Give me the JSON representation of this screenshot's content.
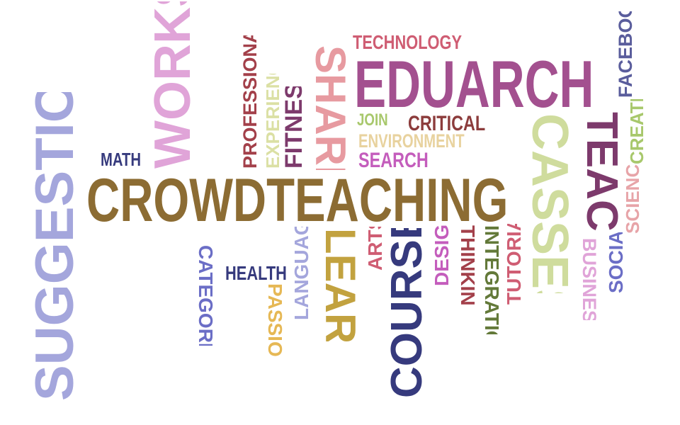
{
  "words": [
    {
      "id": "crowdteaching",
      "text": "CROWDTEACHING",
      "color": "#8c6c33",
      "orientation": "horizontal"
    },
    {
      "id": "eduarch",
      "text": "EDUARCH",
      "color": "#a3508f",
      "orientation": "horizontal"
    },
    {
      "id": "suggestions",
      "text": "SUGGESTIONS",
      "color": "#a4a6dc",
      "orientation": "vertical-up"
    },
    {
      "id": "works",
      "text": "WORKS",
      "color": "#e0a4d8",
      "orientation": "vertical-up"
    },
    {
      "id": "courses",
      "text": "COURSES",
      "color": "#363a7d",
      "orientation": "vertical-up"
    },
    {
      "id": "casses",
      "text": "CASSES",
      "color": "#cfdc9d",
      "orientation": "vertical-down"
    },
    {
      "id": "learn",
      "text": "LEARN",
      "color": "#c2a23f",
      "orientation": "vertical-down"
    },
    {
      "id": "share",
      "text": "SHARE",
      "color": "#e79aa0",
      "orientation": "vertical-down"
    },
    {
      "id": "teach",
      "text": "TEACH",
      "color": "#7d3a6c",
      "orientation": "vertical-down"
    },
    {
      "id": "technology",
      "text": "TECHNOLOGY",
      "color": "#cf5d73",
      "orientation": "horizontal"
    },
    {
      "id": "critical",
      "text": "CRITICAL",
      "color": "#8c3c3c",
      "orientation": "horizontal"
    },
    {
      "id": "join",
      "text": "JOIN",
      "color": "#a8c86c",
      "orientation": "horizontal"
    },
    {
      "id": "environment",
      "text": "ENVIRONMENT",
      "color": "#e8d29e",
      "orientation": "horizontal"
    },
    {
      "id": "search",
      "text": "SEARCH",
      "color": "#c45dbc",
      "orientation": "horizontal"
    },
    {
      "id": "math",
      "text": "MATH",
      "color": "#363a7d",
      "orientation": "horizontal"
    },
    {
      "id": "health",
      "text": "HEALTH",
      "color": "#363a7d",
      "orientation": "horizontal"
    },
    {
      "id": "professionals",
      "text": "PROFESSIONALS",
      "color": "#a3404a",
      "orientation": "vertical-up"
    },
    {
      "id": "experience",
      "text": "EXPERIENCE",
      "color": "#dbe0a4",
      "orientation": "vertical-up"
    },
    {
      "id": "fitness",
      "text": "FITNESS",
      "color": "#7d3a6c",
      "orientation": "vertical-up"
    },
    {
      "id": "facebook",
      "text": "FACEBOOK",
      "color": "#5a5d9c",
      "orientation": "vertical-up"
    },
    {
      "id": "create",
      "text": "CREATE",
      "color": "#a8c86c",
      "orientation": "vertical-up"
    },
    {
      "id": "science",
      "text": "SCIENCE",
      "color": "#e7a4a8",
      "orientation": "vertical-up"
    },
    {
      "id": "categories",
      "text": "CATEGORIES",
      "color": "#6b6ec6",
      "orientation": "vertical-down"
    },
    {
      "id": "languages",
      "text": "LANGUAGES",
      "color": "#a4a6dc",
      "orientation": "vertical-up"
    },
    {
      "id": "passion",
      "text": "PASSION",
      "color": "#e6b855",
      "orientation": "vertical-down"
    },
    {
      "id": "arts",
      "text": "ARTS",
      "color": "#cf5d73",
      "orientation": "vertical-up"
    },
    {
      "id": "design",
      "text": "DESIGN",
      "color": "#c45dbc",
      "orientation": "vertical-up"
    },
    {
      "id": "thinking",
      "text": "THINKING",
      "color": "#a3404a",
      "orientation": "vertical-down"
    },
    {
      "id": "integration",
      "text": "INTEGRATION",
      "color": "#637939",
      "orientation": "vertical-down"
    },
    {
      "id": "tutorial",
      "text": "TUTORIAL",
      "color": "#cf5d73",
      "orientation": "vertical-up"
    },
    {
      "id": "business",
      "text": "BUSINESS",
      "color": "#e0a4d8",
      "orientation": "vertical-down"
    },
    {
      "id": "social",
      "text": "SOCIAL",
      "color": "#6b6ec6",
      "orientation": "vertical-up"
    }
  ]
}
